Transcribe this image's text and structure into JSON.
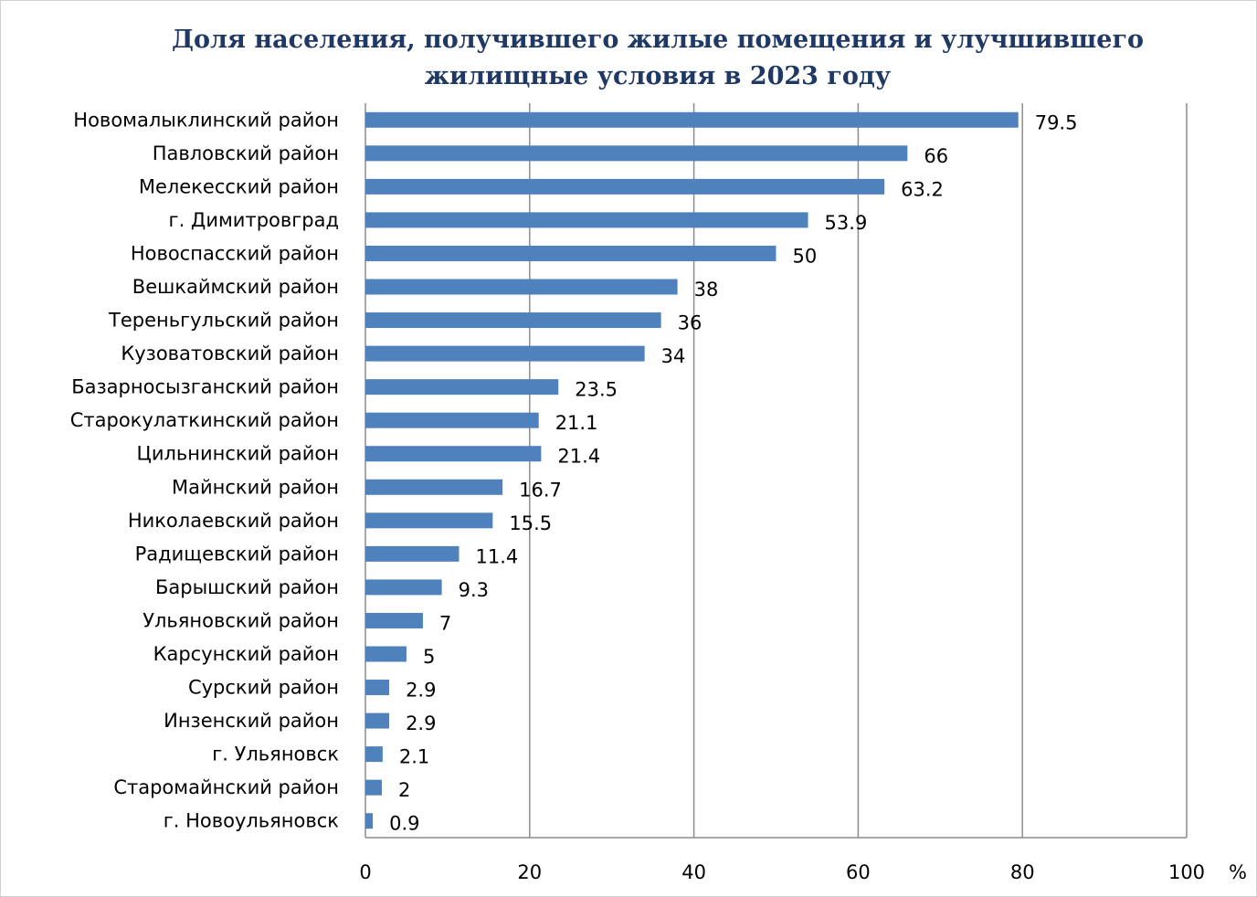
{
  "chart_data": {
    "type": "bar",
    "orientation": "horizontal",
    "title_lines": [
      "Доля населения, получившего жилые помещения и улучшившего",
      "жилищные условия в 2023 году"
    ],
    "unit": "%",
    "categories": [
      "Новомалыклинский район",
      "Павловский район",
      "Мелекесский район",
      "г. Димитровград",
      "Новоспасский район",
      "Вешкаймский район",
      "Тереньгульский район",
      "Кузоватовский район",
      "Базарносызганский район",
      "Старокулаткинский район",
      "Цильнинский район",
      "Майнский район",
      "Николаевский район",
      "Радищевский район",
      "Барышский район",
      "Ульяновский район",
      "Карсунский район",
      "Сурский район",
      "Инзенский район",
      "г. Ульяновск",
      "Старомайнский район",
      "г. Новоульяновск"
    ],
    "values": [
      79.5,
      66,
      63.2,
      53.9,
      50,
      38,
      36,
      34,
      23.5,
      21.1,
      21.4,
      16.7,
      15.5,
      11.4,
      9.3,
      7,
      5,
      2.9,
      2.9,
      2.1,
      2,
      0.9
    ],
    "value_labels": [
      "79.5",
      "66",
      "63.2",
      "53.9",
      "50",
      "38",
      "36",
      "34",
      "23.5",
      "21.1",
      "21.4",
      "16.7",
      "15.5",
      "11.4",
      "9.3",
      "7",
      "5",
      "2.9",
      "2.9",
      "2.1",
      "2",
      "0.9"
    ],
    "xlim": [
      0,
      100
    ],
    "xticks": [
      0,
      20,
      40,
      60,
      80,
      100
    ],
    "xtick_labels": [
      "0",
      "20",
      "40",
      "60",
      "80",
      "100"
    ],
    "grid": true,
    "colors": {
      "bar": "#4f81bd",
      "grid": "#8c8c8c",
      "title": "#1f3864"
    }
  }
}
